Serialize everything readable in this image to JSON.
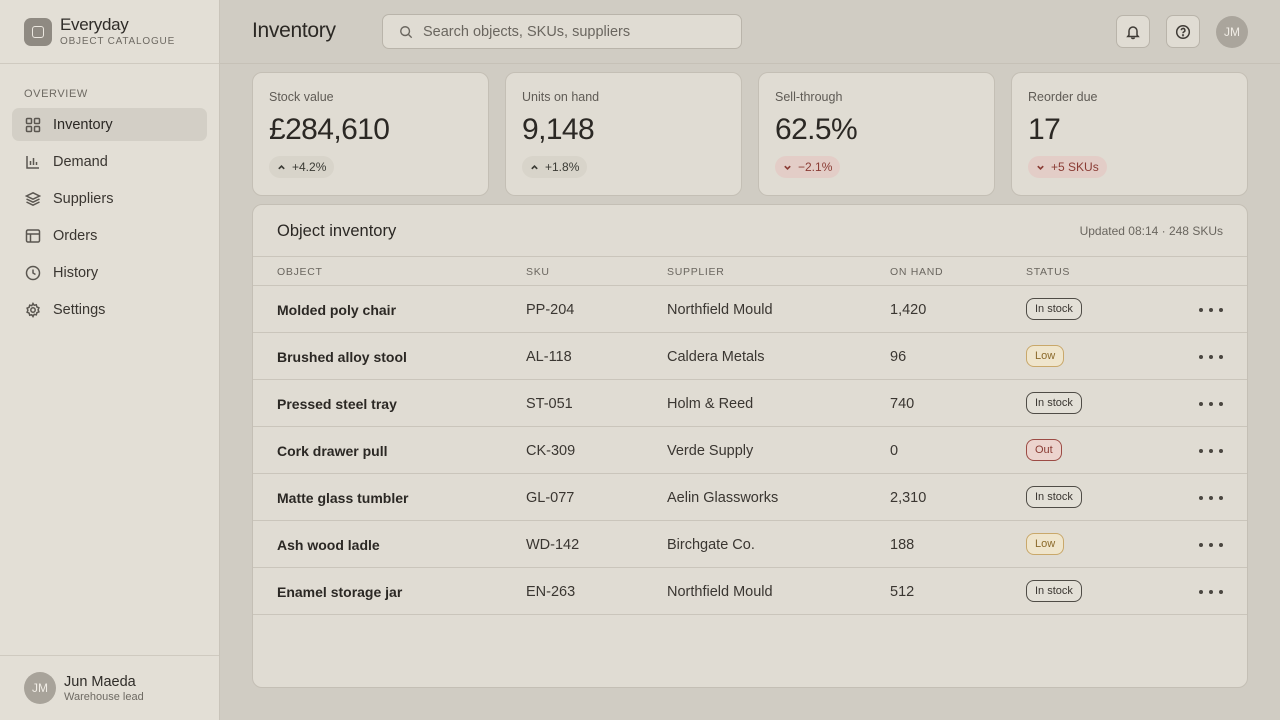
{
  "brand": {
    "name": "Everyday",
    "subtitle": "OBJECT CATALOGUE"
  },
  "sidebar": {
    "section": "OVERVIEW",
    "items": [
      {
        "label": "Inventory",
        "icon": "grid-icon",
        "active": true
      },
      {
        "label": "Demand",
        "icon": "bar-chart-icon"
      },
      {
        "label": "Suppliers",
        "icon": "layers-icon"
      },
      {
        "label": "Orders",
        "icon": "table-icon"
      },
      {
        "label": "History",
        "icon": "clock-icon"
      },
      {
        "label": "Settings",
        "icon": "gear-icon"
      }
    ]
  },
  "user": {
    "initials": "JM",
    "name": "Jun Maeda",
    "role": "Warehouse lead"
  },
  "header": {
    "title": "Inventory",
    "search_placeholder": "Search objects, SKUs, suppliers",
    "avatar_initials": "JM"
  },
  "kpis": [
    {
      "label": "Stock value",
      "value": "£284,610",
      "delta": "+4.2%",
      "direction": "up"
    },
    {
      "label": "Units on hand",
      "value": "9,148",
      "delta": "+1.8%",
      "direction": "up"
    },
    {
      "label": "Sell-through",
      "value": "62.5%",
      "delta": "−2.1%",
      "direction": "down"
    },
    {
      "label": "Reorder due",
      "value": "17",
      "delta": "+5 SKUs",
      "direction": "down"
    }
  ],
  "table": {
    "title": "Object inventory",
    "meta": "Updated 08:14 · 248 SKUs",
    "columns": [
      "OBJECT",
      "SKU",
      "SUPPLIER",
      "ON HAND",
      "STATUS"
    ],
    "rows": [
      {
        "object": "Molded poly chair",
        "sku": "PP-204",
        "supplier": "Northfield Mould",
        "on_hand": "1,420",
        "status": "In stock",
        "status_type": "instock"
      },
      {
        "object": "Brushed alloy stool",
        "sku": "AL-118",
        "supplier": "Caldera Metals",
        "on_hand": "96",
        "status": "Low",
        "status_type": "low"
      },
      {
        "object": "Pressed steel tray",
        "sku": "ST-051",
        "supplier": "Holm & Reed",
        "on_hand": "740",
        "status": "In stock",
        "status_type": "instock"
      },
      {
        "object": "Cork drawer pull",
        "sku": "CK-309",
        "supplier": "Verde Supply",
        "on_hand": "0",
        "status": "Out",
        "status_type": "out"
      },
      {
        "object": "Matte glass tumbler",
        "sku": "GL-077",
        "supplier": "Aelin Glassworks",
        "on_hand": "2,310",
        "status": "In stock",
        "status_type": "instock"
      },
      {
        "object": "Ash wood ladle",
        "sku": "WD-142",
        "supplier": "Birchgate Co.",
        "on_hand": "188",
        "status": "Low",
        "status_type": "low"
      },
      {
        "object": "Enamel storage jar",
        "sku": "EN-263",
        "supplier": "Northfield Mould",
        "on_hand": "512",
        "status": "In stock",
        "status_type": "instock"
      }
    ]
  },
  "colors": {
    "background": "#d0ccc3",
    "sidebar": "#e3dfd6",
    "card": "#e0dcd3",
    "danger": "#8a3b34",
    "warning": "#8b6a2b"
  }
}
